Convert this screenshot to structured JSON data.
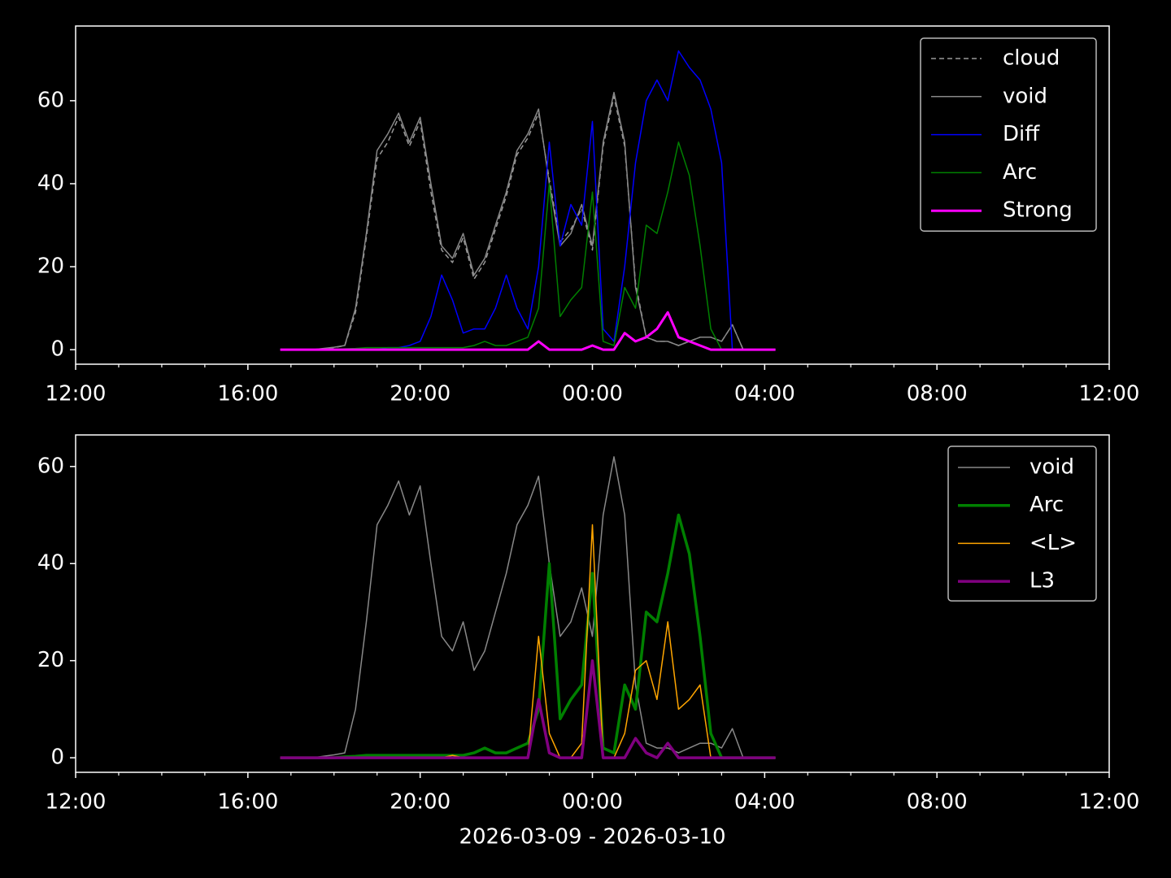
{
  "chart_data": [
    {
      "type": "line",
      "x": [
        16.75,
        17,
        17.25,
        17.5,
        17.75,
        18,
        18.25,
        18.5,
        18.75,
        19,
        19.25,
        19.5,
        19.75,
        20,
        20.25,
        20.5,
        20.75,
        21,
        21.25,
        21.5,
        21.75,
        22,
        22.25,
        22.5,
        22.75,
        23,
        23.25,
        23.5,
        23.75,
        24,
        24.25,
        24.5,
        24.75,
        25,
        25.25,
        25.5,
        25.75,
        26,
        26.25,
        26.5,
        26.75,
        27,
        27.25,
        27.5,
        27.75,
        28,
        28.25
      ],
      "xlim": [
        12,
        36
      ],
      "xticks": [
        {
          "value": 12,
          "label": "12:00"
        },
        {
          "value": 16,
          "label": "16:00"
        },
        {
          "value": 20,
          "label": "20:00"
        },
        {
          "value": 24,
          "label": "00:00"
        },
        {
          "value": 28,
          "label": "04:00"
        },
        {
          "value": 32,
          "label": "08:00"
        },
        {
          "value": 36,
          "label": "12:00"
        }
      ],
      "xminorticks": [
        13,
        14,
        15,
        17,
        18,
        19,
        21,
        22,
        23,
        25,
        26,
        27,
        29,
        30,
        31,
        33,
        34,
        35
      ],
      "ylim": [
        -3.5,
        78
      ],
      "yticks": [
        0,
        20,
        40,
        60
      ],
      "legend": "upper right",
      "series": [
        {
          "name": "cloud",
          "color": "#999999",
          "linestyle": "dashed",
          "linewidth": 1.5,
          "values": [
            0,
            0,
            0,
            0,
            0.2,
            0.5,
            1,
            9,
            27,
            46,
            50,
            56,
            49,
            55,
            38,
            24,
            21,
            27,
            17,
            21,
            29,
            37,
            47,
            51,
            57,
            41,
            26,
            29,
            34,
            24,
            49,
            61,
            49,
            16,
            3,
            2,
            2,
            1,
            2,
            3,
            3,
            2,
            6,
            0,
            0,
            0,
            0
          ]
        },
        {
          "name": "void",
          "color": "#888888",
          "linestyle": "solid",
          "linewidth": 1.5,
          "values": [
            0,
            0,
            0,
            0,
            0.3,
            0.6,
            1,
            10,
            28,
            48,
            52,
            57,
            50,
            56,
            40,
            25,
            22,
            28,
            18,
            22,
            30,
            38,
            48,
            52,
            58,
            40,
            25,
            28,
            35,
            25,
            50,
            62,
            50,
            15,
            3,
            2,
            2,
            1,
            2,
            3,
            3,
            2,
            6,
            0,
            0,
            0,
            0
          ]
        },
        {
          "name": "Diff",
          "color": "#0000ff",
          "linestyle": "solid",
          "linewidth": 1.5,
          "values": [
            0,
            0,
            0,
            0,
            0,
            0,
            0,
            0,
            0,
            0,
            0.5,
            0.5,
            1,
            2,
            8,
            18,
            12,
            4,
            5,
            5,
            10,
            18,
            10,
            5,
            20,
            50,
            25,
            35,
            30,
            55,
            5,
            2,
            20,
            45,
            60,
            65,
            60,
            72,
            68,
            65,
            58,
            45,
            0,
            0,
            0,
            0,
            0
          ]
        },
        {
          "name": "Arc",
          "color": "#008000",
          "linestyle": "solid",
          "linewidth": 1.5,
          "values": [
            0,
            0,
            0,
            0,
            0,
            0,
            0.2,
            0.3,
            0.5,
            0.5,
            0.5,
            0.5,
            0.5,
            0.5,
            0.5,
            0.5,
            0.5,
            0.5,
            1,
            2,
            1,
            1,
            2,
            3,
            10,
            40,
            8,
            12,
            15,
            38,
            2,
            1,
            15,
            10,
            30,
            28,
            38,
            50,
            42,
            25,
            5,
            0,
            0,
            0,
            0,
            0,
            0
          ]
        },
        {
          "name": "Strong",
          "color": "#ff00ff",
          "linestyle": "solid",
          "linewidth": 3,
          "values": [
            0,
            0,
            0,
            0,
            0,
            0,
            0,
            0,
            0,
            0,
            0,
            0,
            0,
            0,
            0,
            0,
            0,
            0,
            0,
            0,
            0,
            0,
            0,
            0,
            2,
            0,
            0,
            0,
            0,
            1,
            0,
            0,
            4,
            2,
            3,
            5,
            9,
            3,
            2,
            1,
            0,
            0,
            0,
            0,
            0,
            0,
            0
          ]
        }
      ]
    },
    {
      "type": "line",
      "x": [
        16.75,
        17,
        17.25,
        17.5,
        17.75,
        18,
        18.25,
        18.5,
        18.75,
        19,
        19.25,
        19.5,
        19.75,
        20,
        20.25,
        20.5,
        20.75,
        21,
        21.25,
        21.5,
        21.75,
        22,
        22.25,
        22.5,
        22.75,
        23,
        23.25,
        23.5,
        23.75,
        24,
        24.25,
        24.5,
        24.75,
        25,
        25.25,
        25.5,
        25.75,
        26,
        26.25,
        26.5,
        26.75,
        27,
        27.25,
        27.5,
        27.75,
        28,
        28.25
      ],
      "xlim": [
        12,
        36
      ],
      "xticks": [
        {
          "value": 12,
          "label": "12:00"
        },
        {
          "value": 16,
          "label": "16:00"
        },
        {
          "value": 20,
          "label": "20:00"
        },
        {
          "value": 24,
          "label": "00:00"
        },
        {
          "value": 28,
          "label": "04:00"
        },
        {
          "value": 32,
          "label": "08:00"
        },
        {
          "value": 36,
          "label": "12:00"
        }
      ],
      "xminorticks": [
        13,
        14,
        15,
        17,
        18,
        19,
        21,
        22,
        23,
        25,
        26,
        27,
        29,
        30,
        31,
        33,
        34,
        35
      ],
      "xlabel": "2026-03-09 - 2026-03-10",
      "ylim": [
        -3,
        66.5
      ],
      "yticks": [
        0,
        20,
        40,
        60
      ],
      "legend": "upper right",
      "series": [
        {
          "name": "void",
          "color": "#888888",
          "linestyle": "solid",
          "linewidth": 1.5,
          "values": [
            0,
            0,
            0,
            0,
            0.3,
            0.6,
            1,
            10,
            28,
            48,
            52,
            57,
            50,
            56,
            40,
            25,
            22,
            28,
            18,
            22,
            30,
            38,
            48,
            52,
            58,
            40,
            25,
            28,
            35,
            25,
            50,
            62,
            50,
            15,
            3,
            2,
            2,
            1,
            2,
            3,
            3,
            2,
            6,
            0,
            0,
            0,
            0
          ]
        },
        {
          "name": "Arc",
          "color": "#008000",
          "linestyle": "solid",
          "linewidth": 3.5,
          "values": [
            0,
            0,
            0,
            0,
            0,
            0,
            0.2,
            0.3,
            0.5,
            0.5,
            0.5,
            0.5,
            0.5,
            0.5,
            0.5,
            0.5,
            0.5,
            0.5,
            1,
            2,
            1,
            1,
            2,
            3,
            10,
            40,
            8,
            12,
            15,
            38,
            2,
            1,
            15,
            10,
            30,
            28,
            38,
            50,
            42,
            25,
            5,
            0,
            0,
            0,
            0,
            0,
            0
          ]
        },
        {
          "name": "<L>",
          "color": "#ffa500",
          "linestyle": "solid",
          "linewidth": 1.5,
          "values": [
            0,
            0,
            0,
            0,
            0,
            0,
            0,
            0,
            0,
            0,
            0,
            0,
            0,
            0,
            0,
            0,
            0.5,
            0,
            0,
            0,
            0,
            0,
            0,
            0,
            25,
            5,
            0,
            0,
            3,
            48,
            0,
            0,
            5,
            18,
            20,
            12,
            28,
            10,
            12,
            15,
            0,
            0,
            0,
            0,
            0,
            0,
            0
          ]
        },
        {
          "name": "L3",
          "color": "#800080",
          "linestyle": "solid",
          "linewidth": 3.5,
          "values": [
            0,
            0,
            0,
            0,
            0,
            0,
            0,
            0,
            0,
            0,
            0,
            0,
            0,
            0,
            0,
            0,
            0,
            0,
            0,
            0,
            0,
            0,
            0,
            0,
            12,
            1,
            0,
            0,
            0,
            20,
            0,
            0,
            0,
            4,
            1,
            0,
            3,
            0,
            0,
            0,
            0,
            0,
            0,
            0,
            0,
            0,
            0
          ]
        }
      ]
    }
  ]
}
